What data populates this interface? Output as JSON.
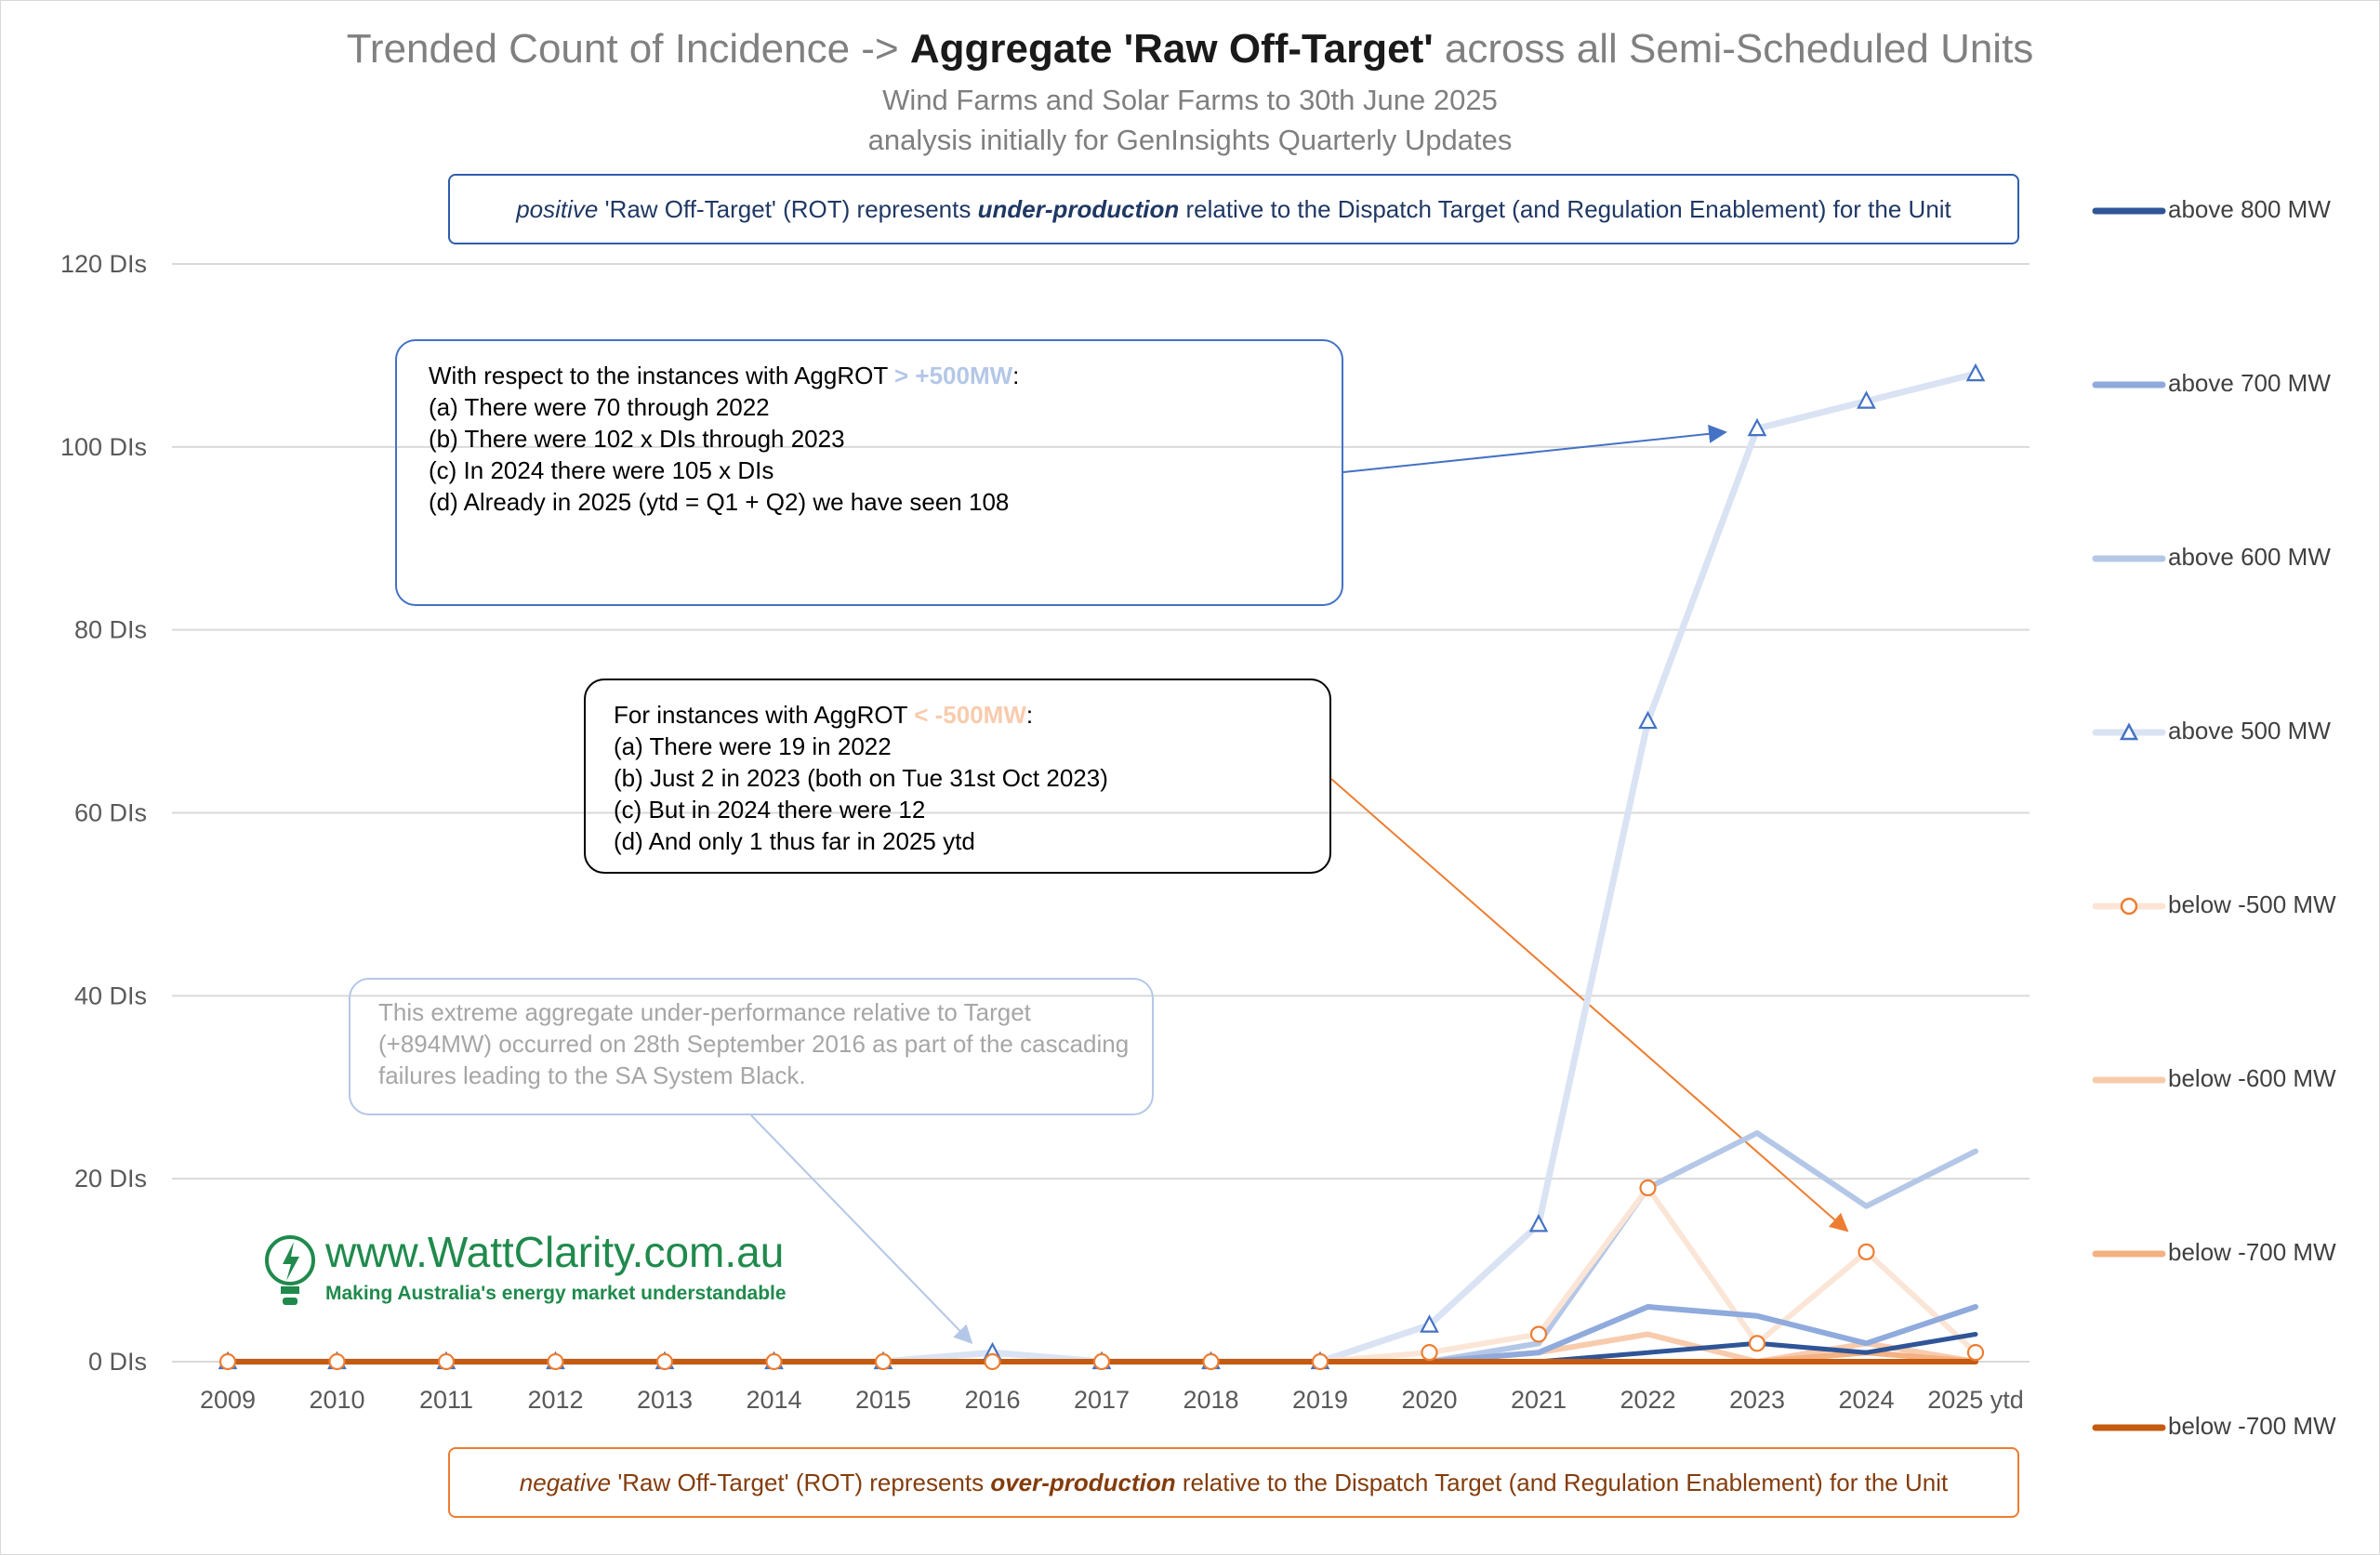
{
  "title": {
    "part1": "Trended Count of Incidence -> ",
    "part2": "Aggregate 'Raw Off-Target'",
    "part3": " across all Semi-Scheduled Units"
  },
  "subtitle_1": "Wind Farms and Solar Farms to 30th June 2025",
  "subtitle_2": "analysis initially for GenInsights Quarterly Updates",
  "note_positive": {
    "t1": "positive",
    "t2": " 'Raw Off-Target' (ROT)  represents ",
    "t3": "under-production",
    "t4": " relative to the Dispatch Target (and Regulation Enablement) for the Unit"
  },
  "note_negative": {
    "t1": "negative",
    "t2": " 'Raw Off-Target' (ROT)  represents ",
    "t3": "over-production",
    "t4": " relative to the Dispatch Target (and Regulation Enablement) for the Unit"
  },
  "callout_positive": {
    "lead": "With respect to the instances with AggROT ",
    "highlight": "> +500MW",
    "trail": ":",
    "lines": [
      "(a)  There were 70 through 2022",
      "(b)  There were 102 x DIs through 2023",
      "(c)  In 2024 there were 105 x DIs",
      "(d)  Already in 2025 (ytd = Q1 + Q2) we have seen 108"
    ]
  },
  "callout_negative": {
    "lead": "For instances with AggROT ",
    "highlight": "< -500MW",
    "trail": ":",
    "lines": [
      "(a)  There were 19 in 2022",
      "(b)  Just 2 in 2023  (both on Tue 31st Oct 2023)",
      "(c)  But in 2024 there were 12",
      "(d)  And only 1 thus far in 2025 ytd"
    ]
  },
  "callout_2016": {
    "lines": [
      "This extreme aggregate under-performance relative to Target",
      "(+894MW) occurred on 28th September 2016 as part of the cascading",
      "failures leading to the SA System Black."
    ]
  },
  "logo": {
    "text": "www.WattClarity.com.au",
    "tagline": "Making Australia's energy market understandable"
  },
  "colors": {
    "above_800": "#2f5597",
    "above_700": "#8faadc",
    "above_600": "#b4c7e7",
    "above_500": "#dae3f3",
    "marker_500": "#4472c4",
    "below_500": "#fbe5d6",
    "marker_below_500": "#ed7d31",
    "below_600": "#f8cbad",
    "below_700_a": "#f4b183",
    "below_700_b": "#c55a11"
  },
  "chart_data": {
    "type": "line",
    "title": "Trended Count of Incidence -> Aggregate 'Raw Off-Target' across all Semi-Scheduled Units",
    "xlabel": "",
    "ylabel": "",
    "ylim": [
      0,
      120
    ],
    "y_ticks": [
      "0 DIs",
      "20 DIs",
      "40 DIs",
      "60 DIs",
      "80 DIs",
      "100 DIs",
      "120 DIs"
    ],
    "grid": true,
    "legend_position": "right",
    "categories": [
      "2009",
      "2010",
      "2011",
      "2012",
      "2013",
      "2014",
      "2015",
      "2016",
      "2017",
      "2018",
      "2019",
      "2020",
      "2021",
      "2022",
      "2023",
      "2024",
      "2025 ytd"
    ],
    "series": [
      {
        "name": "above 800 MW",
        "values": [
          0,
          0,
          0,
          0,
          0,
          0,
          0,
          0,
          0,
          0,
          0,
          0,
          0,
          1,
          2,
          1,
          3
        ]
      },
      {
        "name": "above 700 MW",
        "values": [
          0,
          0,
          0,
          0,
          0,
          0,
          0,
          0,
          0,
          0,
          0,
          0,
          1,
          6,
          5,
          2,
          6
        ]
      },
      {
        "name": "above 600 MW",
        "values": [
          0,
          0,
          0,
          0,
          0,
          0,
          0,
          0,
          0,
          0,
          0,
          0,
          2,
          19,
          25,
          17,
          23
        ]
      },
      {
        "name": "above 500 MW",
        "values": [
          0,
          0,
          0,
          0,
          0,
          0,
          0,
          1,
          0,
          0,
          0,
          4,
          15,
          70,
          102,
          105,
          108
        ]
      },
      {
        "name": "below -500 MW",
        "values": [
          0,
          0,
          0,
          0,
          0,
          0,
          0,
          0,
          0,
          0,
          0,
          1,
          3,
          19,
          2,
          12,
          1
        ]
      },
      {
        "name": "below -600 MW",
        "values": [
          0,
          0,
          0,
          0,
          0,
          0,
          0,
          0,
          0,
          0,
          0,
          0,
          1,
          3,
          0,
          2,
          0
        ]
      },
      {
        "name": "below -700 MW",
        "values": [
          0,
          0,
          0,
          0,
          0,
          0,
          0,
          0,
          0,
          0,
          0,
          0,
          0,
          0,
          0,
          1,
          0
        ]
      },
      {
        "name": "below -700 MW",
        "values": [
          0,
          0,
          0,
          0,
          0,
          0,
          0,
          0,
          0,
          0,
          0,
          0,
          0,
          0,
          0,
          0,
          0
        ]
      }
    ]
  }
}
